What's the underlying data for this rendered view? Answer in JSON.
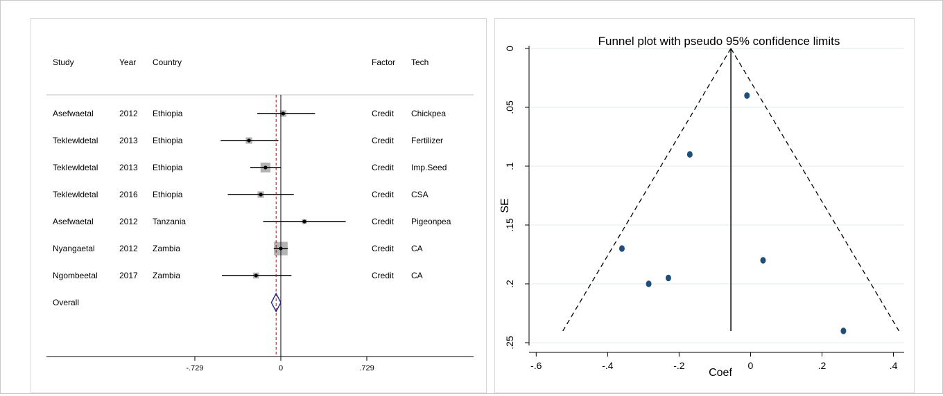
{
  "forest": {
    "headers": {
      "study": "Study",
      "year": "Year",
      "country": "Country",
      "factor": "Factor",
      "tech": "Tech"
    },
    "rows": [
      {
        "study": "Asefwaetal",
        "year": "2012",
        "country": "Ethiopia",
        "factor": "Credit",
        "tech": "Chickpea",
        "est": 0.02,
        "lo": -0.2,
        "hi": 0.29
      },
      {
        "study": "Teklewldetal",
        "year": "2013",
        "country": "Ethiopia",
        "factor": "Credit",
        "tech": "Fertilizer",
        "est": -0.27,
        "lo": -0.51,
        "hi": -0.02
      },
      {
        "study": "Teklewldetal",
        "year": "2013",
        "country": "Ethiopia",
        "factor": "Credit",
        "tech": "Imp.Seed",
        "est": -0.13,
        "lo": -0.26,
        "hi": 0.0
      },
      {
        "study": "Teklewldetal",
        "year": "2016",
        "country": "Ethiopia",
        "factor": "Credit",
        "tech": "CSA",
        "est": -0.17,
        "lo": -0.45,
        "hi": 0.11
      },
      {
        "study": "Asefwaetal",
        "year": "2012",
        "country": "Tanzania",
        "factor": "Credit",
        "tech": "Pigeonpea",
        "est": 0.2,
        "lo": -0.15,
        "hi": 0.55
      },
      {
        "study": "Nyangaetal",
        "year": "2012",
        "country": "Zambia",
        "factor": "Credit",
        "tech": "CA",
        "est": 0.0,
        "lo": -0.06,
        "hi": 0.06
      },
      {
        "study": "Ngombeetal",
        "year": "2017",
        "country": "Zambia",
        "factor": "Credit",
        "tech": "CA",
        "est": -0.21,
        "lo": -0.5,
        "hi": 0.09
      }
    ],
    "box_weights": [
      0.7,
      0.7,
      1.7,
      0.7,
      0.4,
      3.2,
      0.6
    ],
    "overall": {
      "label": "Overall",
      "est": -0.04,
      "lo": -0.08,
      "hi": 0.0
    },
    "axis": {
      "ticks": [
        -0.729,
        0,
        0.729
      ],
      "tick_labels": [
        "-.729",
        "0",
        ".729"
      ],
      "range": [
        -1.05,
        1.05
      ]
    },
    "colors": {
      "box": "#b4b4b4",
      "diamond": "#1f2a7a",
      "ref_line": "#8b1a1a",
      "ink": "#000000"
    }
  },
  "chart_data": {
    "type": "scatter",
    "title": "Funnel plot with pseudo 95% confidence limits",
    "xlabel": "Coef",
    "ylabel": "SE",
    "xlim": [
      -0.62,
      0.43
    ],
    "ylim": [
      0,
      0.25
    ],
    "y_reversed": true,
    "x_ticks": [
      -0.6,
      -0.4,
      -0.2,
      0,
      0.2,
      0.4
    ],
    "x_tick_labels": [
      "-.6",
      "-.4",
      "-.2",
      "0",
      ".2",
      ".4"
    ],
    "y_ticks": [
      0,
      0.05,
      0.1,
      0.15,
      0.2,
      0.25
    ],
    "y_tick_labels": [
      "0",
      ".05",
      ".1",
      ".15",
      ".2",
      ".25"
    ],
    "points": [
      {
        "x": -0.01,
        "y": 0.04
      },
      {
        "x": -0.17,
        "y": 0.09
      },
      {
        "x": -0.36,
        "y": 0.17
      },
      {
        "x": 0.035,
        "y": 0.18
      },
      {
        "x": -0.23,
        "y": 0.195
      },
      {
        "x": -0.285,
        "y": 0.2
      },
      {
        "x": 0.26,
        "y": 0.24
      }
    ],
    "pooled": -0.055,
    "funnel_se_max": 0.24,
    "grid": true,
    "colors": {
      "point": "#1f4e79",
      "grid": "#dcebea",
      "ink": "#000000"
    }
  }
}
